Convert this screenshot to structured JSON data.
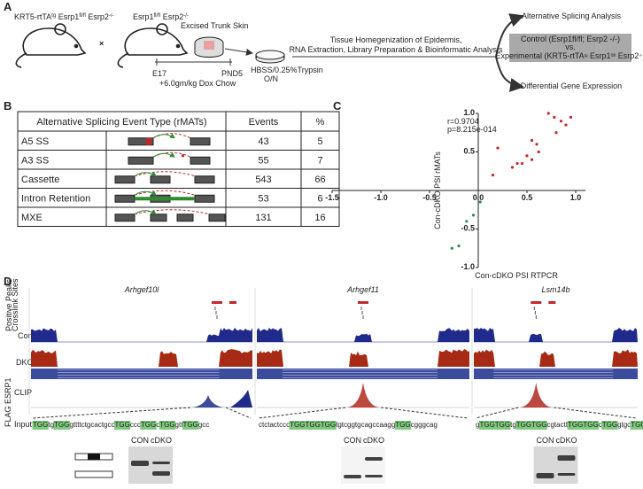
{
  "panel_a": {
    "label": "A",
    "mouse1_label": [
      "KRT5-rtTA",
      "tg",
      " Esrp1",
      "fl/fl",
      " Esrp2",
      "-/-"
    ],
    "cross": "×",
    "mouse2_label": [
      "Esrp1",
      "fl/fl",
      " Esrp2",
      "-/-"
    ],
    "step_skin": "Excised Trunk Skin",
    "timepoint_start": "E17",
    "timepoint_end": "PND5",
    "treatment": "+6.0gm/kg Dox Chow",
    "dissociation": "HBSS/0.25%Trypsin",
    "incubation": "O/N",
    "processing": [
      "Tissue Homegenization of Epidermis,",
      "RNA Extraction, Library Preparation & Bioinformatic Analysis"
    ],
    "output_splicing": "Alternative Splicing Analysis",
    "comparison": {
      "control": "Control (Esrp1fl/fl; Esrp2 -/-)",
      "vs": "vs.",
      "experimental": [
        "Experimental (KRT5-rtTA",
        "tg",
        " Esrp1",
        "fl/fl",
        " Esrp2",
        "-/-",
        ")"
      ]
    },
    "output_expression": "Differential Gene Expression"
  },
  "panel_b": {
    "label": "B",
    "header": [
      "Alternative Splicing Event Type (rMATs)",
      "Events",
      "%"
    ],
    "rows": [
      [
        "A5 SS",
        43,
        5
      ],
      [
        "A3 SS",
        55,
        7
      ],
      [
        "Cassette",
        543,
        66
      ],
      [
        "Intron Retention",
        53,
        6
      ],
      [
        "MXE",
        131,
        16
      ]
    ]
  },
  "panel_c": {
    "label": "C"
  },
  "chart_data": {
    "type": "scatter",
    "annotations": [
      "r=0.9704",
      "p=8.215e-014"
    ],
    "x_label": "Con-cDKO PSI RTPCR",
    "y_label": "Con-cDKO PSI rMATs",
    "xlim": [
      -1.5,
      1.1
    ],
    "ylim": [
      -1,
      1
    ],
    "xticks": [
      {
        "value": -1.5,
        "label": "-1.5"
      },
      {
        "value": -1,
        "label": "-1.0"
      },
      {
        "value": -0.5,
        "label": "-0.5"
      },
      {
        "value": 0,
        "label": "0.0"
      },
      {
        "value": 0.5,
        "label": "0.5"
      },
      {
        "value": 1,
        "label": "1.0"
      }
    ],
    "yticks": [
      {
        "value": -1,
        "label": "-1.0"
      },
      {
        "value": -0.5,
        "label": "-0.5"
      },
      {
        "value": 0.5,
        "label": "0.5"
      },
      {
        "value": 1,
        "label": "1.0"
      }
    ],
    "series": [
      {
        "color": "#c0282d",
        "x": [
          0.72,
          0.78,
          0.85,
          0.9,
          0.95,
          0.8,
          0.55,
          0.6,
          0.62,
          0.5,
          0.55,
          0.45,
          0.4,
          0.35,
          0.2,
          0.15
        ],
        "values": [
          1.0,
          0.95,
          0.9,
          0.85,
          0.95,
          0.75,
          0.65,
          0.6,
          0.5,
          0.45,
          0.4,
          0.35,
          0.35,
          0.3,
          0.55,
          0.2
        ]
      },
      {
        "color": "#2e8b57",
        "x": [
          0.02,
          -0.05,
          -0.12,
          -0.2,
          -0.27
        ],
        "values": [
          -0.15,
          -0.32,
          -0.4,
          -0.72,
          -0.75
        ]
      }
    ]
  },
  "panel_d": {
    "label": "D",
    "track_labels": {
      "peaks": "Positive Peaks",
      "crosslinks": "Crosslink Sites",
      "con": "Con",
      "dko": "DKO",
      "clip": "CLIP",
      "input": "Input",
      "antibody": "FLAG ESRP1"
    },
    "genes": [
      {
        "name": "Arhgef10l",
        "motif_sequence": [
          "TGG",
          "tg",
          "TGG",
          "gttttctgcactgcc",
          "TGG",
          "ccc",
          "TGG",
          "c",
          "TGG",
          "gtt",
          "TGG",
          "gcc"
        ],
        "gel_lanes": [
          "CON",
          "cDKO"
        ]
      },
      {
        "name": "Arhgef11",
        "motif_sequence": [
          "ctctactccc",
          "TGGTGGTGG",
          "tgtcggtgcagccaagg",
          "TGG",
          "cgggcag"
        ],
        "gel_lanes": [
          "CON",
          "cDKO"
        ]
      },
      {
        "name": "Lsm14b",
        "motif_sequence": [
          "g",
          "TGGTGG",
          "tg",
          "TGGTGG",
          "cgtactt",
          "TGGTGG",
          "c",
          "TGG",
          "gtgc",
          "TGG"
        ],
        "gel_lanes": [
          "CON",
          "cDKO"
        ]
      }
    ]
  }
}
